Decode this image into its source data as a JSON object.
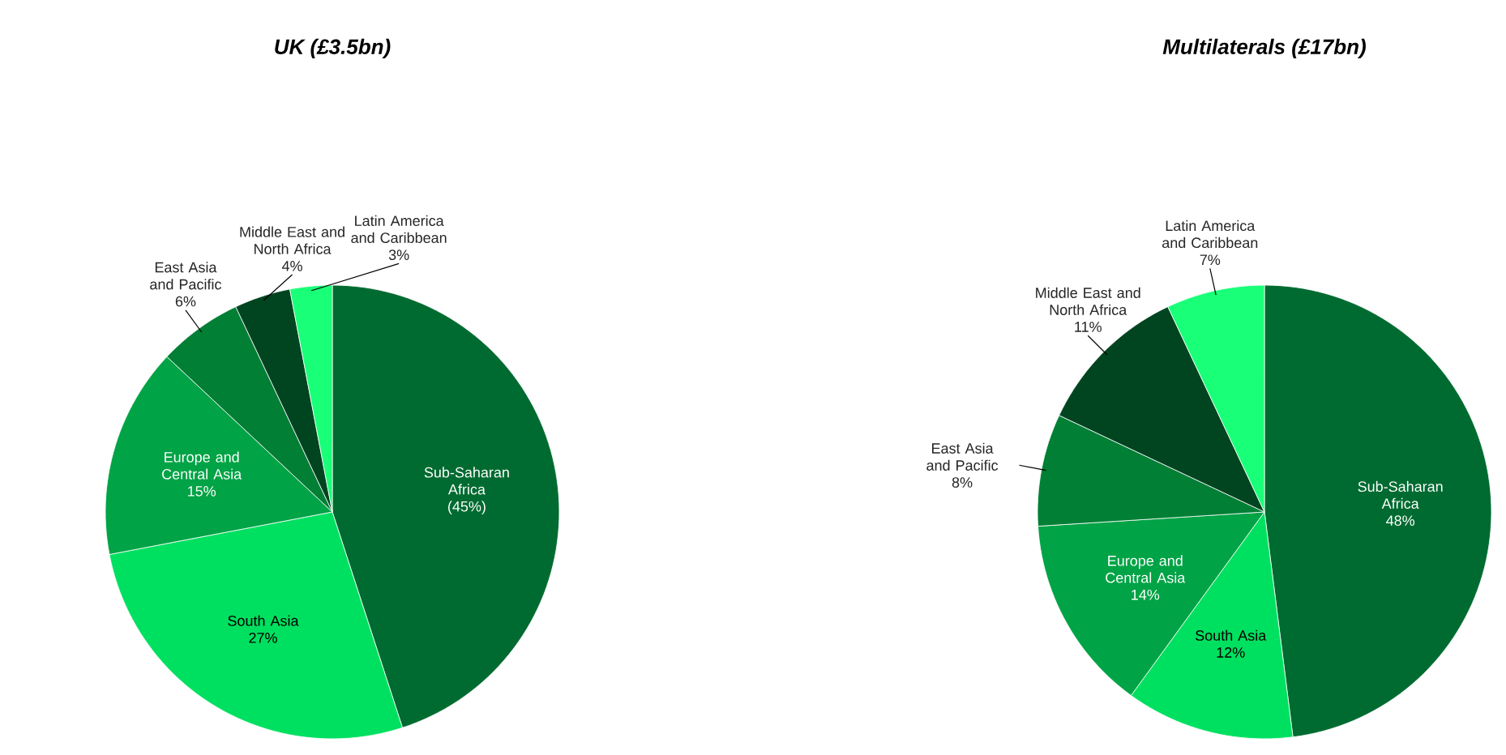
{
  "chart_data": [
    {
      "type": "pie",
      "title": "UK (£3.5bn)",
      "categories": [
        "Sub-Saharan Africa",
        "South Asia",
        "Europe and Central Asia",
        "East Asia and Pacific",
        "Middle East and North Africa",
        "Latin America and Caribbean"
      ],
      "values": [
        45,
        27,
        15,
        6,
        4,
        3
      ],
      "value_labels": [
        "(45%)",
        "27%",
        "15%",
        "6%",
        "4%",
        "3%"
      ],
      "colors": [
        "#006b30",
        "#00e060",
        "#00a345",
        "#007f35",
        "#004520",
        "#1aff78"
      ]
    },
    {
      "type": "pie",
      "title": "Multilaterals (£17bn)",
      "categories": [
        "Sub-Saharan Africa",
        "South Asia",
        "Europe and Central Asia",
        "East Asia and Pacific",
        "Middle East and North Africa",
        "Latin America and Caribbean"
      ],
      "values": [
        48,
        12,
        14,
        8,
        11,
        7
      ],
      "value_labels": [
        "48%",
        "12%",
        "14%",
        "8%",
        "11%",
        "7%"
      ],
      "colors": [
        "#006b30",
        "#00e060",
        "#00a345",
        "#007f35",
        "#004520",
        "#1aff78"
      ]
    }
  ]
}
